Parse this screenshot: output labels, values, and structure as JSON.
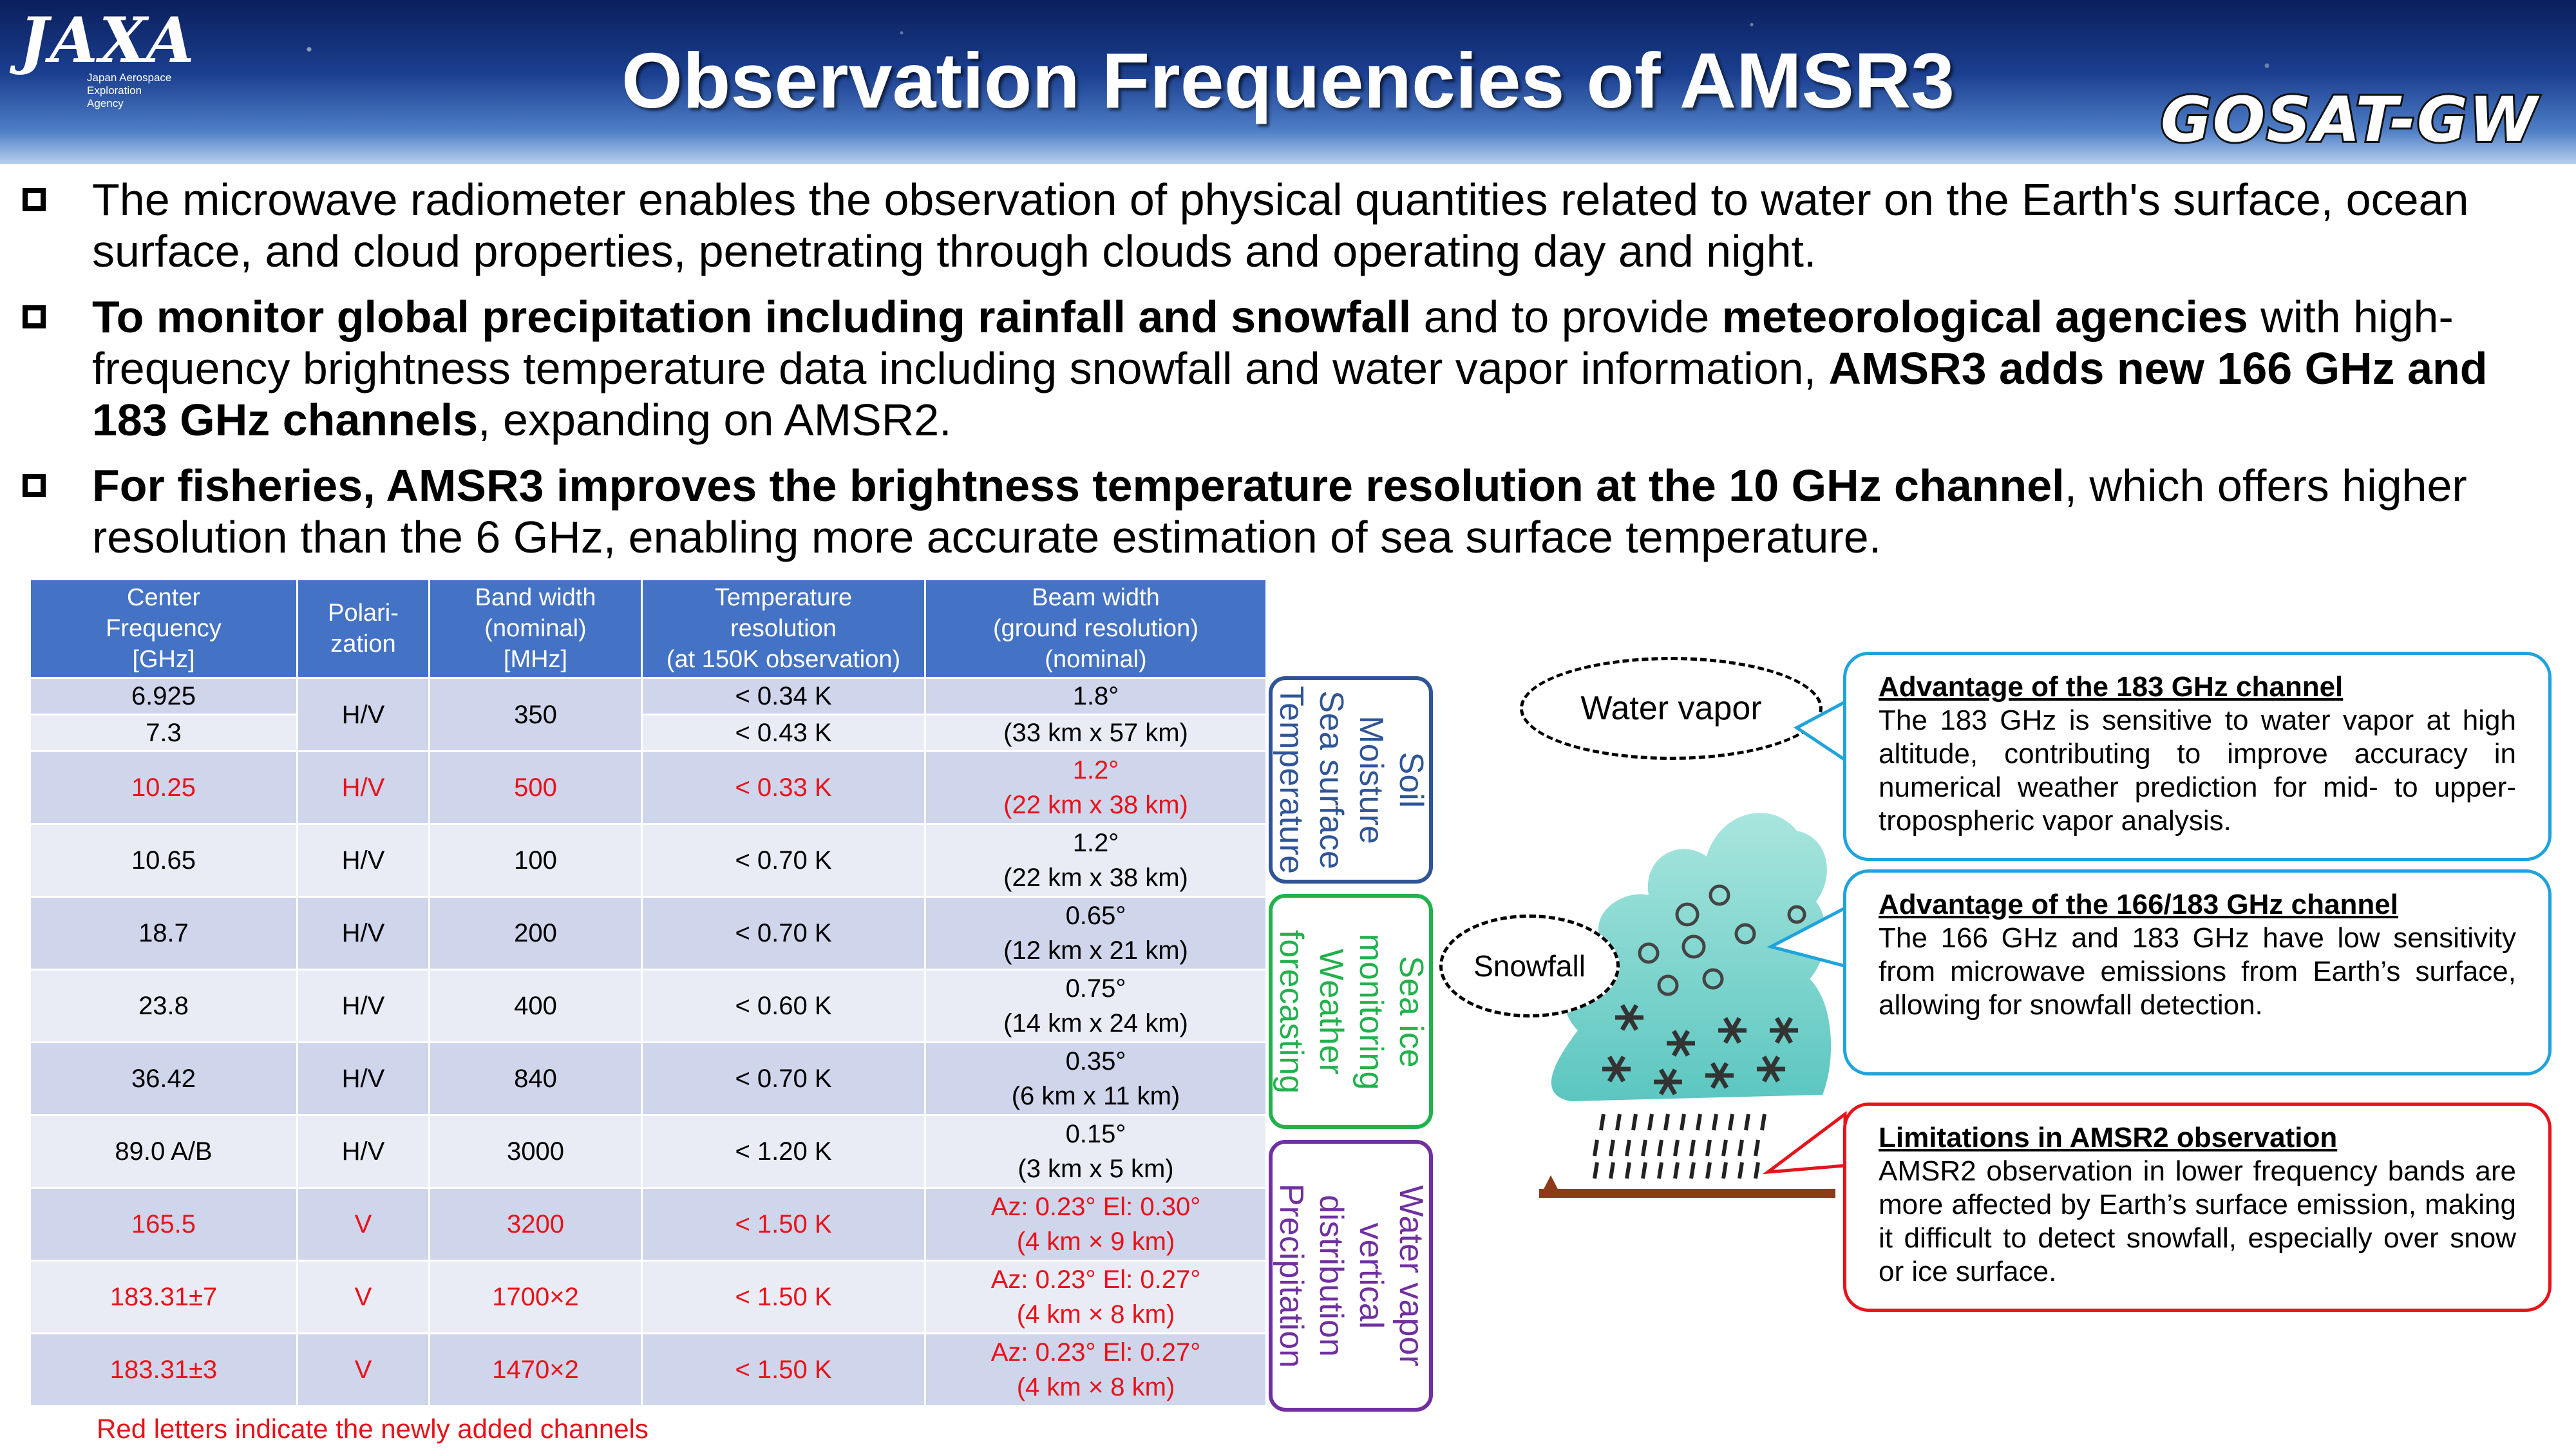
{
  "header": {
    "title": "Observation Frequencies of AMSR3",
    "agency_logo": "JAXA",
    "agency_name": "Japan Aerospace Exploration Agency",
    "mission_logo": "GOSAT-GW"
  },
  "bullets": [
    {
      "segments": [
        {
          "text": "The microwave radiometer enables the observation of physical quantities related to water on the Earth's surface, ocean surface, and cloud properties, penetrating through clouds and operating day and night.",
          "bold": false
        }
      ]
    },
    {
      "segments": [
        {
          "text": "To monitor global precipitation including rainfall and snowfall",
          "bold": true
        },
        {
          "text": " and to provide ",
          "bold": false
        },
        {
          "text": "meteorological agencies",
          "bold": true
        },
        {
          "text": " with high-frequency brightness temperature data including snowfall and water vapor information, ",
          "bold": false
        },
        {
          "text": "AMSR3 adds new 166 GHz and 183 GHz channels",
          "bold": true
        },
        {
          "text": ", expanding on AMSR2.",
          "bold": false
        }
      ]
    },
    {
      "segments": [
        {
          "text": "For fisheries, AMSR3 improves the brightness temperature resolution at the 10 GHz channel",
          "bold": true
        },
        {
          "text": ", which offers higher resolution than the 6 GHz, enabling more accurate estimation of sea surface temperature.",
          "bold": false
        }
      ]
    }
  ],
  "table": {
    "headers": [
      "Center\nFrequency\n[GHz]",
      "Polari-\nzation",
      "Band width\n(nominal)\n[MHz]",
      "Temperature\nresolution\n(at 150K observation)",
      "Beam width\n(ground resolution)\n(nominal)"
    ],
    "row_6": {
      "freq": "6.925",
      "temp": "< 0.34 K",
      "beam": "1.8°"
    },
    "row_7": {
      "freq": "7.3",
      "temp": "< 0.43 K",
      "beam": "(33 km x 57 km)"
    },
    "row_6_7_shared": {
      "pol": "H/V",
      "bw": "350"
    },
    "rows": [
      {
        "freq": "10.25",
        "pol": "H/V",
        "bw": "500",
        "temp": "< 0.33 K",
        "beam": "1.2°\n(22 km x 38 km)",
        "new": true
      },
      {
        "freq": "10.65",
        "pol": "H/V",
        "bw": "100",
        "temp": "< 0.70 K",
        "beam": "1.2°\n(22 km x 38 km)",
        "new": false
      },
      {
        "freq": "18.7",
        "pol": "H/V",
        "bw": "200",
        "temp": "< 0.70 K",
        "beam": "0.65°\n(12 km x 21 km)",
        "new": false
      },
      {
        "freq": "23.8",
        "pol": "H/V",
        "bw": "400",
        "temp": "< 0.60 K",
        "beam": "0.75°\n(14 km x 24 km)",
        "new": false
      },
      {
        "freq": "36.42",
        "pol": "H/V",
        "bw": "840",
        "temp": "< 0.70 K",
        "beam": "0.35°\n(6 km x 11 km)",
        "new": false
      },
      {
        "freq": "89.0 A/B",
        "pol": "H/V",
        "bw": "3000",
        "temp": "< 1.20 K",
        "beam": "0.15°\n(3 km x 5 km)",
        "new": false
      },
      {
        "freq": "165.5",
        "pol": "V",
        "bw": "3200",
        "temp": "< 1.50 K",
        "beam": "Az: 0.23°  El: 0.30°\n(4 km × 9 km)",
        "new": true
      },
      {
        "freq": "183.31±7",
        "pol": "V",
        "bw": "1700×2",
        "temp": "< 1.50 K",
        "beam": "Az: 0.23°  El: 0.27°\n(4 km × 8 km)",
        "new": true
      },
      {
        "freq": "183.31±3",
        "pol": "V",
        "bw": "1470×2",
        "temp": "< 1.50 K",
        "beam": "Az: 0.23°  El: 0.27°\n(4 km × 8 km)",
        "new": true
      }
    ],
    "note": "Red letters indicate the newly added channels"
  },
  "categories": {
    "blue": "Soil Moisture\nSea surface\nTemperature",
    "green": "Sea ice\nmonitoring\nWeather\nforecasting",
    "purple": "Water vapor\nvertical distribution\nPrecipitation"
  },
  "illustration": {
    "water_vapor_label": "Water vapor",
    "snowfall_label": "Snowfall"
  },
  "callouts": [
    {
      "heading": "Advantage of the 183 GHz channel",
      "body": "The 183 GHz is sensitive to water vapor at high altitude, contributing to improve accuracy in numerical weather prediction for mid- to upper-tropospheric vapor analysis."
    },
    {
      "heading": "Advantage of the 166/183 GHz channel",
      "body": "The 166 GHz and 183 GHz have low sensitivity from microwave emissions from Earth’s surface, allowing for snowfall detection."
    },
    {
      "heading": "Limitations in AMSR2 observation",
      "body": "AMSR2 observation in lower frequency bands are more affected by Earth’s surface emission, making it difficult to detect snowfall, especially over snow or ice surface."
    }
  ],
  "colors": {
    "red": "#e8121a",
    "table_header": "#4472c4",
    "blue": "#2f5597",
    "green": "#22b14c",
    "purple": "#7030a0",
    "cyan": "#1fa3dc"
  }
}
